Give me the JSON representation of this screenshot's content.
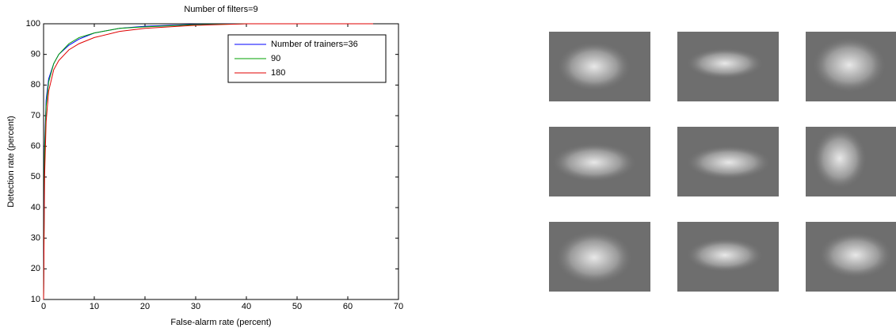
{
  "chart_data": {
    "type": "line",
    "title": "Number of filters=9",
    "x_label": "False-alarm rate (percent)",
    "y_label": "Detection rate (percent)",
    "x": [
      0,
      0.2,
      0.5,
      1,
      2,
      3,
      5,
      7,
      10,
      15,
      20,
      30,
      40,
      65
    ],
    "series": [
      {
        "name": "Number of trainers=36",
        "color": "#0000ff",
        "values": [
          10,
          60,
          75,
          82,
          87,
          90,
          93,
          95,
          97,
          98.5,
          99.2,
          99.8,
          100,
          100
        ]
      },
      {
        "name": "90",
        "color": "#00a000",
        "values": [
          10,
          58,
          73,
          81,
          87,
          90,
          93.5,
          95.5,
          97,
          98.5,
          99,
          99.7,
          100,
          100
        ]
      },
      {
        "name": "180",
        "color": "#e00000",
        "values": [
          10,
          50,
          68,
          78,
          85,
          88,
          91.5,
          93.5,
          95.5,
          97.5,
          98.5,
          99.5,
          100,
          100
        ]
      }
    ],
    "xlim": [
      0,
      70
    ],
    "xticks": [
      0,
      10,
      20,
      30,
      40,
      50,
      60,
      70
    ],
    "ylim": [
      10,
      100
    ],
    "yticks": [
      10,
      20,
      30,
      40,
      50,
      60,
      70,
      80,
      90,
      100
    ],
    "legend": "upper right",
    "grid": false
  }
}
